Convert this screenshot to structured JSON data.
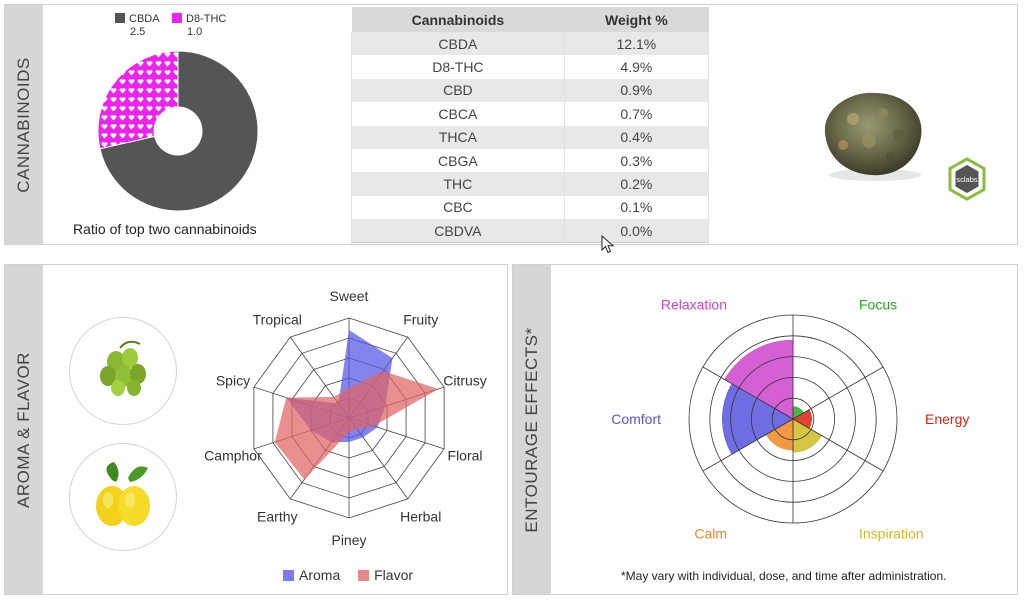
{
  "cannabinoids": {
    "section_label": "CANNABINOIDS",
    "caption": "Ratio of top two cannabinoids",
    "colors": {
      "CBDA": "#555555",
      "D8-THC": "#ee22ee"
    },
    "table": {
      "headers": [
        "Cannabinoids",
        "Weight %"
      ],
      "rows": [
        [
          "CBDA",
          "12.1%"
        ],
        [
          "D8-THC",
          "4.9%"
        ],
        [
          "CBD",
          "0.9%"
        ],
        [
          "CBCA",
          "0.7%"
        ],
        [
          "THCA",
          "0.4%"
        ],
        [
          "CBGA",
          "0.3%"
        ],
        [
          "THC",
          "0.2%"
        ],
        [
          "CBC",
          "0.1%"
        ],
        [
          "CBDVA",
          "0.0%"
        ]
      ]
    },
    "logo_text": "sclabs"
  },
  "aroma": {
    "section_label": "AROMA & FLAVOR",
    "icons": [
      "hops-icon",
      "lemon-icon"
    ]
  },
  "entourage": {
    "section_label": "ENTOURAGE EFFECTS*",
    "footnote": "*May vary with individual, dose, and time after administration."
  },
  "chart_data": [
    {
      "type": "pie",
      "title": "Ratio of top two cannabinoids",
      "donut": true,
      "legend": "top",
      "labels": [
        "CBDA",
        "D8-THC"
      ],
      "values": [
        2.5,
        1.0
      ],
      "value_labels": [
        "2.5",
        "1.0"
      ],
      "colors": [
        "#555555",
        "#ee22ee"
      ]
    },
    {
      "type": "radar",
      "categories": [
        "Sweet",
        "Fruity",
        "Citrusy",
        "Floral",
        "Herbal",
        "Piney",
        "Earthy",
        "Camphor",
        "Spicy",
        "Tropical"
      ],
      "rmax": 5,
      "grid": true,
      "legend": "bottom",
      "series": [
        {
          "name": "Aroma",
          "color": "#5a5ae6",
          "values": [
            4.4,
            3.7,
            1.9,
            1.5,
            1.2,
            1.2,
            1.5,
            2.0,
            3.3,
            0.9
          ]
        },
        {
          "name": "Flavor",
          "color": "#e07575",
          "values": [
            1.5,
            2.9,
            4.7,
            1.3,
            0.7,
            0.7,
            3.8,
            3.9,
            3.3,
            1.3
          ]
        }
      ]
    },
    {
      "type": "polar-area",
      "title": "ENTOURAGE EFFECTS*",
      "rmax": 5,
      "categories": [
        "Focus",
        "Energy",
        "Inspiration",
        "Calm",
        "Comfort",
        "Relaxation"
      ],
      "colors": [
        "#22aa22",
        "#dd2211",
        "#ccbb22",
        "#ee8822",
        "#5555dd",
        "#cc44cc"
      ],
      "values": [
        0.6,
        0.9,
        1.6,
        1.5,
        3.4,
        3.8
      ]
    }
  ]
}
